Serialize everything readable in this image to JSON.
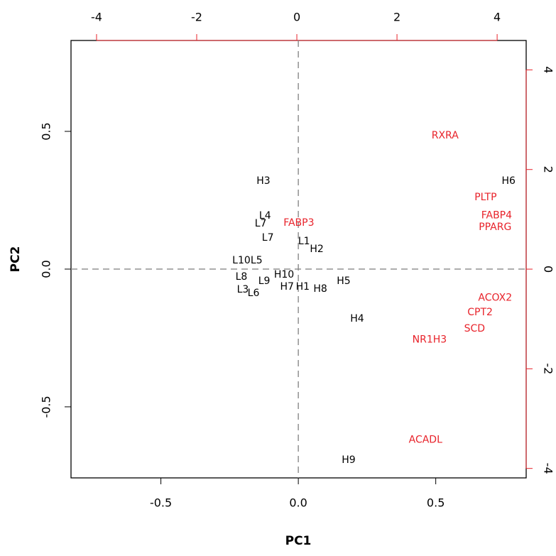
{
  "chart_data": {
    "type": "biplot",
    "xlabel": "PC1",
    "ylabel": "PC2",
    "xlim": [
      -0.827,
      0.829
    ],
    "ylim": [
      -0.758,
      0.83
    ],
    "xticks": [
      {
        "value": -0.5,
        "label": "-0.5"
      },
      {
        "value": 0,
        "label": "0.0"
      },
      {
        "value": 0.5,
        "label": "0.5"
      }
    ],
    "yticks": [
      {
        "value": -0.5,
        "label": "-0.5"
      },
      {
        "value": 0,
        "label": "0.0"
      },
      {
        "value": 0.5,
        "label": "0.5"
      }
    ],
    "x2lim": [
      -4.51,
      4.58
    ],
    "y2lim": [
      -4.19,
      4.59
    ],
    "x2ticks": [
      -4,
      -2,
      0,
      2,
      4
    ],
    "y2ticks": [
      -4,
      -2,
      0,
      2,
      4
    ],
    "zero_lines": true,
    "observations": {
      "color": "#000000",
      "labels": [
        "H3",
        "H6",
        "L4",
        "L7",
        "L7",
        "L1",
        "H2",
        "L10",
        "L5",
        "L8",
        "H10",
        "L9",
        "L3",
        "L6",
        "H7",
        "H1",
        "H8",
        "H5",
        "H4",
        "H9"
      ],
      "x": [
        -0.127,
        0.765,
        -0.121,
        -0.137,
        -0.111,
        0.021,
        0.067,
        -0.207,
        -0.152,
        -0.207,
        -0.052,
        -0.124,
        -0.202,
        -0.163,
        -0.041,
        0.016,
        0.08,
        0.165,
        0.214,
        0.183
      ],
      "y": [
        0.32,
        0.32,
        0.193,
        0.165,
        0.113,
        0.1,
        0.072,
        0.031,
        0.031,
        -0.028,
        -0.021,
        -0.044,
        -0.075,
        -0.088,
        -0.064,
        -0.064,
        -0.072,
        -0.044,
        -0.18,
        -0.693
      ]
    },
    "variables": {
      "color": "#e8222a",
      "labels": [
        "RXRA",
        "PLTP",
        "FABP4",
        "PPARG",
        "FABP3",
        "ACOX2",
        "CPT2",
        "SCD",
        "NR1H3",
        "ACADL"
      ],
      "x": [
        2.96,
        3.77,
        3.99,
        3.96,
        0.04,
        3.96,
        3.66,
        3.55,
        2.65,
        2.57
      ],
      "y": [
        2.68,
        1.44,
        1.08,
        0.84,
        0.93,
        -0.58,
        -0.87,
        -1.2,
        -1.42,
        -3.43
      ]
    }
  }
}
